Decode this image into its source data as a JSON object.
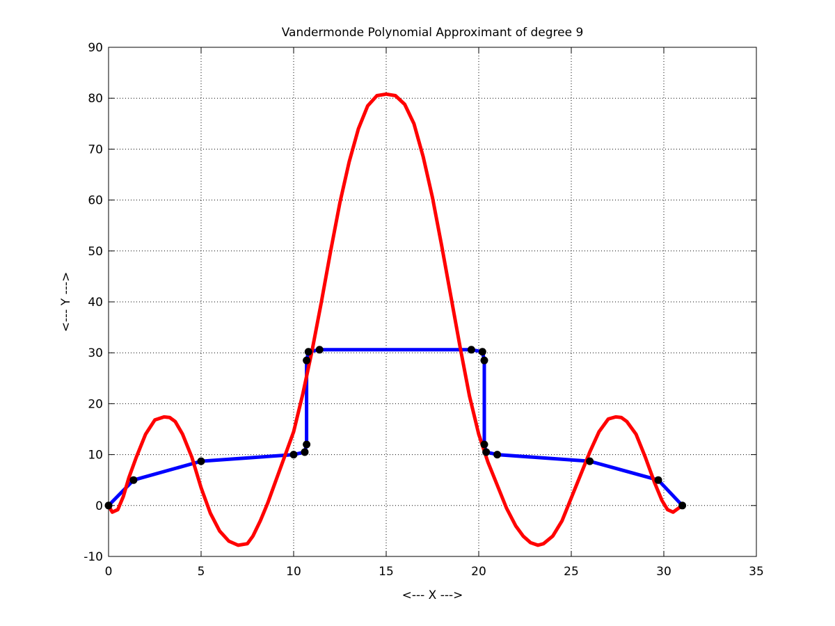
{
  "chart_data": {
    "type": "line",
    "title": "Vandermonde Polynomial Approximant of degree 9",
    "xlabel": "<--- X --->",
    "ylabel": "<--- Y --->",
    "xlim": [
      0,
      35
    ],
    "ylim": [
      -10,
      90
    ],
    "xticks": [
      0,
      5,
      10,
      15,
      20,
      25,
      30,
      35
    ],
    "yticks": [
      -10,
      0,
      10,
      20,
      30,
      40,
      50,
      60,
      70,
      80,
      90
    ],
    "grid": true,
    "series": [
      {
        "role": "data-points",
        "color": "#0000ff",
        "marker_color": "#000000",
        "x": [
          0,
          1.35,
          5.0,
          10.0,
          10.6,
          10.7,
          10.7,
          10.8,
          11.4,
          19.6,
          20.2,
          20.3,
          20.3,
          20.4,
          21.0,
          26.0,
          29.7,
          31.0
        ],
        "y": [
          0,
          5.0,
          8.7,
          10.0,
          10.5,
          12.0,
          28.5,
          30.2,
          30.6,
          30.6,
          30.2,
          28.5,
          12.0,
          10.5,
          10.0,
          8.7,
          5.0,
          0
        ]
      },
      {
        "role": "polynomial-curve",
        "color": "#ff0000",
        "x": [
          0,
          0.2,
          0.5,
          0.8,
          1.1,
          1.5,
          2.0,
          2.5,
          3.0,
          3.3,
          3.6,
          4.0,
          4.5,
          5.0,
          5.5,
          6.0,
          6.5,
          7.0,
          7.5,
          7.8,
          8.2,
          8.6,
          9.0,
          9.5,
          10.0,
          10.5,
          11.0,
          11.5,
          12.0,
          12.5,
          13.0,
          13.5,
          14.0,
          14.5,
          15.0,
          15.5,
          16.0,
          16.5,
          17.0,
          17.5,
          18.0,
          18.5,
          19.0,
          19.5,
          20.0,
          20.5,
          21.0,
          21.5,
          22.0,
          22.4,
          22.8,
          23.2,
          23.5,
          24.0,
          24.5,
          25.0,
          25.5,
          26.0,
          26.5,
          27.0,
          27.4,
          27.7,
          28.0,
          28.5,
          29.0,
          29.5,
          29.9,
          30.2,
          30.5,
          30.8,
          31.0
        ],
        "y": [
          0,
          -1.3,
          -0.8,
          1.8,
          5.5,
          9.5,
          14.0,
          16.8,
          17.4,
          17.3,
          16.5,
          14.0,
          9.5,
          3.5,
          -1.5,
          -5.0,
          -7.0,
          -7.8,
          -7.5,
          -6.0,
          -3.0,
          0.5,
          4.5,
          9.5,
          14.5,
          22.0,
          30.5,
          40.0,
          50.0,
          59.5,
          67.5,
          74.0,
          78.5,
          80.5,
          80.8,
          80.5,
          78.8,
          75.0,
          68.5,
          60.5,
          51.0,
          41.0,
          31.0,
          21.5,
          14.0,
          8.5,
          4.0,
          -0.5,
          -4.0,
          -6.0,
          -7.3,
          -7.8,
          -7.5,
          -6.0,
          -3.0,
          1.5,
          6.0,
          10.5,
          14.5,
          17.0,
          17.4,
          17.3,
          16.5,
          14.0,
          9.5,
          4.5,
          1.0,
          -0.8,
          -1.3,
          -0.5,
          0
        ]
      }
    ]
  }
}
